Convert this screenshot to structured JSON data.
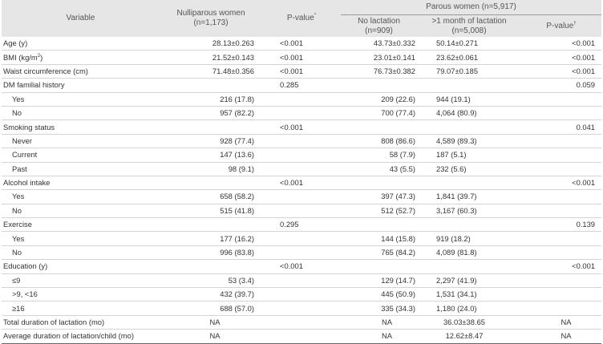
{
  "header": {
    "variable": "Variable",
    "nulliparous_line1": "Nulliparous women",
    "nulliparous_line2": "(n=1,173)",
    "pvalue1": "P-value",
    "pvalue1_mark": "*",
    "parous": "Parous women  (n=5,917)",
    "no_lactation_line1": "No lactation",
    "no_lactation_line2": "(n=909)",
    "lactation_line1": ">1 month of lactation",
    "lactation_line2": "(n=5,008)",
    "pvalue2": "P-value",
    "pvalue2_mark": "†"
  },
  "rows": [
    {
      "label": "Age (y)",
      "nul": "28.13±0.263",
      "p1": "<0.001",
      "nol": "43.73±0.332",
      "lac": "50.14±0.271",
      "p2": "<0.001"
    },
    {
      "label_pre": "BMI (kg/m",
      "label_sup": "2",
      "label_post": ")",
      "nul": "21.52±0.143",
      "p1": "<0.001",
      "nol": "23.01±0.141",
      "lac": "23.62±0.061",
      "p2": "<0.001"
    },
    {
      "label": "Waist circumference (cm)",
      "nul": "71.48±0.356",
      "p1": "<0.001",
      "nol": "76.73±0.382",
      "lac": "79.07±0.185",
      "p2": "<0.001"
    },
    {
      "label": "DM familial history",
      "nul": "",
      "p1": "0.285",
      "nol": "",
      "lac": "",
      "p2": "0.059"
    },
    {
      "label": "Yes",
      "nul": "216 (17.8)",
      "p1": "",
      "nol": "209 (22.6)",
      "lac": "944 (19.1)",
      "p2": ""
    },
    {
      "label": "No",
      "nul": "957 (82.2)",
      "p1": "",
      "nol": "700 (77.4)",
      "lac": "4,064 (80.9)",
      "p2": ""
    },
    {
      "label": "Smoking status",
      "nul": "",
      "p1": "<0.001",
      "nol": "",
      "lac": "",
      "p2": "0.041"
    },
    {
      "label": "Never",
      "nul": "928 (77.4)",
      "p1": "",
      "nol": "808 (86.6)",
      "lac": "4,589 (89.3)",
      "p2": ""
    },
    {
      "label": "Current",
      "nul": "147 (13.6)",
      "p1": "",
      "nol": "58 (7.9)",
      "lac": "187 (5.1)",
      "p2": ""
    },
    {
      "label": "Past",
      "nul": "98 (9.1)",
      "p1": "",
      "nol": "43 (5.5)",
      "lac": "232 (5.6)",
      "p2": ""
    },
    {
      "label": "Alcohol intake",
      "nul": "",
      "p1": "<0.001",
      "nol": "",
      "lac": "",
      "p2": "<0.001"
    },
    {
      "label": "Yes",
      "nul": "658 (58.2)",
      "p1": "",
      "nol": "397 (47.3)",
      "lac": "1,841 (39.7)",
      "p2": ""
    },
    {
      "label": "No",
      "nul": "515 (41.8)",
      "p1": "",
      "nol": "512 (52.7)",
      "lac": "3,167 (60.3)",
      "p2": ""
    },
    {
      "label": "Exercise",
      "nul": "",
      "p1": "0.295",
      "nol": "",
      "lac": "",
      "p2": "0.139"
    },
    {
      "label": "Yes",
      "nul": "177 (16.2)",
      "p1": "",
      "nol": "144 (15.8)",
      "lac": "919 (18.2)",
      "p2": ""
    },
    {
      "label": "No",
      "nul": "996 (83.8)",
      "p1": "",
      "nol": "765 (84.2)",
      "lac": "4,089 (81.8)",
      "p2": ""
    },
    {
      "label": "Education (y)",
      "nul": "",
      "p1": "<0.001",
      "nol": "",
      "lac": "",
      "p2": "<0.001"
    },
    {
      "label": "≤9",
      "nul": "53 (3.4)",
      "p1": "",
      "nol": "129 (14.7)",
      "lac": "2,297 (41.9)",
      "p2": ""
    },
    {
      "label": ">9, <16",
      "nul": "432 (39.7)",
      "p1": "",
      "nol": "445 (50.9)",
      "lac": "1,531 (34.1)",
      "p2": ""
    },
    {
      "label": "≥16",
      "nul": "688 (57.0)",
      "p1": "",
      "nol": "335 (34.3)",
      "lac": "1,180 (24.0)",
      "p2": ""
    },
    {
      "label": "Total duration of lactation (mo)",
      "nul": "NA",
      "p1": "",
      "nol": "NA",
      "lac": "36.03±38.65",
      "p2": "NA"
    },
    {
      "label": "Average duration of lactation/child (mo)",
      "nul": "NA",
      "p1": "",
      "nol": "NA",
      "lac": "12.62±8.47",
      "p2": "NA"
    }
  ]
}
